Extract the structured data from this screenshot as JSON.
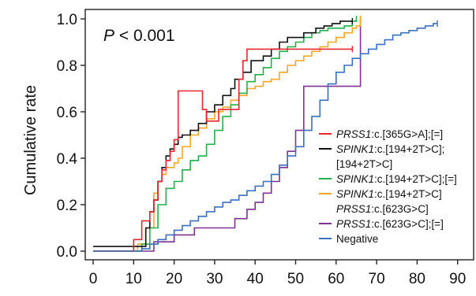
{
  "chart_data": {
    "type": "line",
    "title": "",
    "xlabel": "",
    "ylabel": "Cumulative rate",
    "annotation": {
      "italic": "P",
      "rest": " < 0.001"
    },
    "xlim": [
      0,
      90
    ],
    "ylim": [
      0,
      1.0
    ],
    "x_ticks": [
      "0",
      "10",
      "20",
      "30",
      "40",
      "50",
      "60",
      "70",
      "80",
      "90"
    ],
    "y_ticks": [
      "0.0",
      "0.2",
      "0.4",
      "0.6",
      "0.8",
      "1.0"
    ],
    "grid": false,
    "legend_position": "bottom-right",
    "series": [
      {
        "name": "PRSS1:c.[365G>A];[=]",
        "legend": [
          {
            "text": "PRSS1",
            "italic": true
          },
          {
            "text": ":c.[365G>A];[=]",
            "italic": false
          }
        ],
        "color": "#e8262b",
        "x": [
          0,
          7,
          10,
          12,
          14,
          15,
          16,
          17,
          18,
          19,
          20,
          21,
          26,
          27,
          28,
          30,
          31,
          36,
          37,
          38,
          64
        ],
        "y": [
          0,
          0,
          0.05,
          0.13,
          0.17,
          0.22,
          0.3,
          0.35,
          0.39,
          0.43,
          0.48,
          0.69,
          0.69,
          0.61,
          0.56,
          0.56,
          0.61,
          0.74,
          0.82,
          0.87,
          0.87
        ]
      },
      {
        "name": "SPINK1:c.[194+2T>C];[194+2T>C]",
        "legend": [
          {
            "text": "SPINK1",
            "italic": true
          },
          {
            "text": ":c.[194+2T>C];",
            "italic": false
          },
          {
            "text": "[194+2T>C]",
            "italic": false,
            "newline": true
          }
        ],
        "color": "#111111",
        "x": [
          0,
          12,
          13,
          14,
          15,
          16,
          17,
          18,
          19,
          20,
          21,
          22,
          24,
          26,
          28,
          30,
          32,
          34,
          35,
          37,
          39,
          42,
          44,
          46,
          48,
          52,
          55,
          57,
          59,
          61,
          63,
          64
        ],
        "y": [
          0.02,
          0.02,
          0.1,
          0.17,
          0.22,
          0.3,
          0.36,
          0.41,
          0.44,
          0.46,
          0.49,
          0.5,
          0.52,
          0.55,
          0.6,
          0.63,
          0.67,
          0.7,
          0.74,
          0.77,
          0.82,
          0.84,
          0.87,
          0.9,
          0.92,
          0.94,
          0.96,
          0.97,
          0.98,
          0.99,
          0.99,
          0.99
        ]
      },
      {
        "name": "SPINK1:c.[194+2T>C];[=]",
        "legend": [
          {
            "text": "SPINK1",
            "italic": true
          },
          {
            "text": ":c.[194+2T>C];[=]",
            "italic": false
          }
        ],
        "color": "#22b14c",
        "x": [
          0,
          11,
          12,
          14,
          16,
          18,
          20,
          22,
          24,
          26,
          28,
          30,
          32,
          34,
          36,
          38,
          40,
          42,
          44,
          46,
          48,
          50,
          52,
          54,
          56,
          58,
          60,
          62,
          64,
          65
        ],
        "y": [
          0,
          0,
          0.03,
          0.1,
          0.2,
          0.27,
          0.3,
          0.35,
          0.39,
          0.41,
          0.46,
          0.52,
          0.58,
          0.63,
          0.68,
          0.73,
          0.76,
          0.79,
          0.83,
          0.86,
          0.88,
          0.9,
          0.92,
          0.94,
          0.95,
          0.96,
          0.96,
          0.97,
          0.99,
          1.0
        ]
      },
      {
        "name": "SPINK1:c.[194+2T>C] PRSS1:c.[623G>C]",
        "legend": [
          {
            "text": "SPINK1",
            "italic": true
          },
          {
            "text": ":c.[194+2T>C]",
            "italic": false
          },
          {
            "text": "PRSS1",
            "italic": true,
            "newline": true
          },
          {
            "text": ":c.[623G>C]",
            "italic": false
          }
        ],
        "color": "#f7a823",
        "x": [
          0,
          8,
          11,
          13,
          15,
          16,
          17,
          18,
          20,
          21,
          22,
          24,
          26,
          28,
          30,
          32,
          34,
          36,
          38,
          40,
          42,
          44,
          46,
          48,
          50,
          52,
          54,
          56,
          58,
          60,
          62,
          64,
          65,
          66
        ],
        "y": [
          0,
          0,
          0.03,
          0.1,
          0.25,
          0.3,
          0.33,
          0.36,
          0.38,
          0.4,
          0.45,
          0.5,
          0.53,
          0.57,
          0.6,
          0.62,
          0.65,
          0.67,
          0.7,
          0.71,
          0.73,
          0.74,
          0.77,
          0.8,
          0.82,
          0.84,
          0.86,
          0.88,
          0.9,
          0.92,
          0.94,
          0.96,
          0.97,
          1.0
        ]
      },
      {
        "name": "PRSS1:c.[623G>C];[=]",
        "legend": [
          {
            "text": "PRSS1",
            "italic": true
          },
          {
            "text": ":c.[623G>C];[=]",
            "italic": false
          }
        ],
        "color": "#7b3294",
        "x": [
          0,
          11,
          15,
          20,
          25,
          30,
          35,
          38,
          40,
          42,
          44,
          46,
          48,
          50,
          52,
          64,
          66
        ],
        "y": [
          0,
          0,
          0.04,
          0.07,
          0.1,
          0.1,
          0.14,
          0.18,
          0.21,
          0.25,
          0.3,
          0.36,
          0.43,
          0.52,
          0.71,
          0.71,
          1.0
        ]
      },
      {
        "name": "Negative",
        "legend": [
          {
            "text": "Negative",
            "italic": false
          }
        ],
        "color": "#3b6fbf",
        "x": [
          0,
          10,
          12,
          14,
          16,
          18,
          20,
          22,
          24,
          26,
          28,
          30,
          32,
          34,
          36,
          38,
          40,
          42,
          44,
          46,
          48,
          50,
          52,
          54,
          56,
          58,
          60,
          62,
          64,
          66,
          68,
          70,
          72,
          74,
          76,
          78,
          80,
          82,
          84,
          85
        ],
        "y": [
          0,
          0,
          0.01,
          0.03,
          0.05,
          0.07,
          0.09,
          0.11,
          0.13,
          0.15,
          0.17,
          0.19,
          0.21,
          0.22,
          0.24,
          0.26,
          0.28,
          0.3,
          0.33,
          0.37,
          0.41,
          0.45,
          0.52,
          0.58,
          0.65,
          0.72,
          0.77,
          0.8,
          0.83,
          0.85,
          0.87,
          0.89,
          0.91,
          0.93,
          0.94,
          0.95,
          0.96,
          0.97,
          0.98,
          0.98
        ]
      }
    ]
  }
}
